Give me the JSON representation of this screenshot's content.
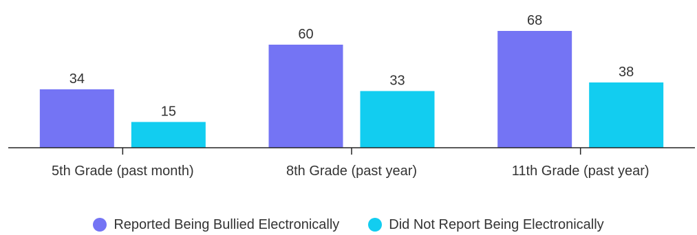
{
  "chart_data": {
    "type": "bar",
    "categories": [
      "5th Grade (past month)",
      "8th Grade (past year)",
      "11th Grade (past year)"
    ],
    "series": [
      {
        "name": "Reported Being Bullied Electronically",
        "values": [
          34,
          60,
          68
        ],
        "color": "#7474f4"
      },
      {
        "name": "Did Not Report Being Electronically",
        "values": [
          15,
          33,
          38
        ],
        "color": "#12cdf0"
      }
    ],
    "title": "",
    "xlabel": "",
    "ylabel": "",
    "ylim": [
      0,
      72
    ],
    "grid": false,
    "legend_position": "bottom",
    "data_labels": true
  }
}
